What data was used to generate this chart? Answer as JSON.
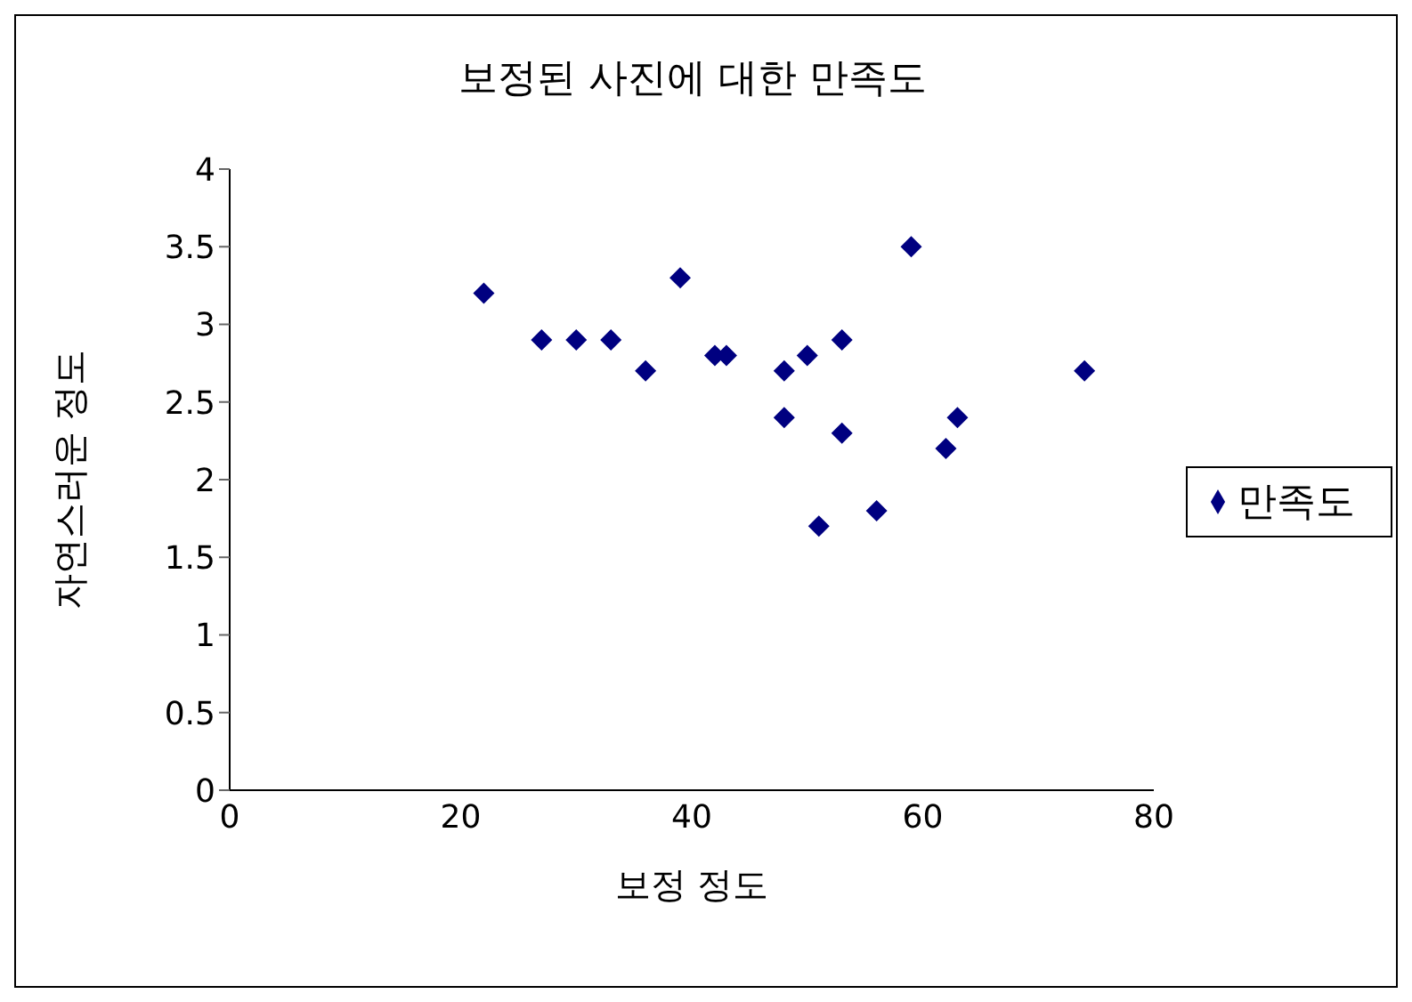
{
  "chart_data": {
    "type": "scatter",
    "title": "보정된 사진에 대한 만족도",
    "xlabel": "보정 정도",
    "ylabel": "자연스러운 정도",
    "x": [
      22,
      27,
      30,
      33,
      36,
      39,
      42,
      43,
      48,
      48,
      50,
      53,
      53,
      51,
      56,
      59,
      62,
      63,
      74
    ],
    "series": [
      {
        "name": "만족도",
        "color": "#000080",
        "values": [
          3.2,
          2.9,
          2.9,
          2.9,
          2.7,
          3.3,
          2.8,
          2.8,
          2.7,
          2.4,
          2.8,
          2.9,
          2.3,
          1.7,
          1.8,
          3.5,
          2.2,
          2.4,
          2.7
        ]
      }
    ],
    "xlim": [
      0,
      80
    ],
    "xticks": [
      0,
      20,
      40,
      60,
      80
    ],
    "ylim": [
      0,
      4
    ],
    "yticks": [
      0,
      0.5,
      1,
      1.5,
      2,
      2.5,
      3,
      3.5,
      4
    ],
    "grid": false,
    "legend": "right",
    "marker": "diamond"
  }
}
